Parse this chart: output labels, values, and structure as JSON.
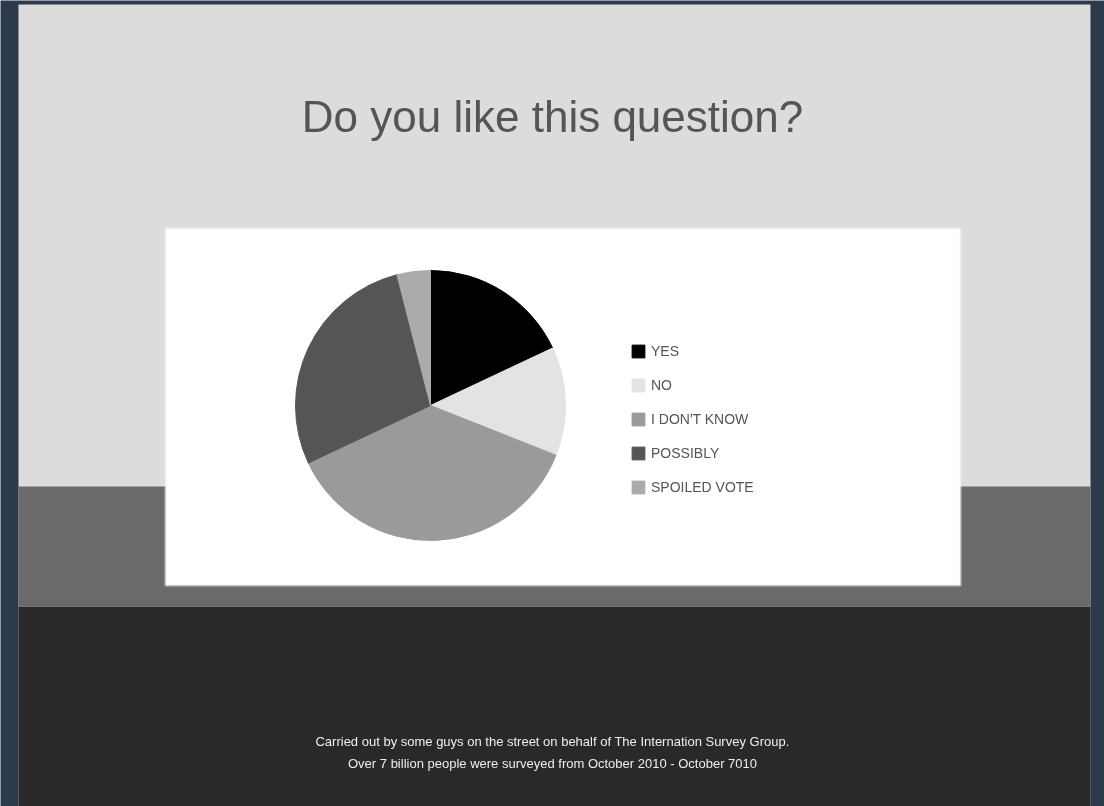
{
  "chart_data": {
    "type": "pie",
    "title": "Do you like this question?",
    "categories": [
      "YES",
      "NO",
      "I DON'T KNOW",
      "POSSIBLY",
      "SPOILED VOTE"
    ],
    "values": [
      18,
      13,
      37,
      28,
      4
    ],
    "colors": [
      "#000000",
      "#e3e3e3",
      "#9a9a9a",
      "#555555",
      "#ababab"
    ],
    "legend": "right",
    "annotations": [
      "Carried out by some guys on the street on behalf of The Internation Survey Group.",
      "Over 7 billion people were surveyed from October 2010 - October 7010"
    ]
  }
}
